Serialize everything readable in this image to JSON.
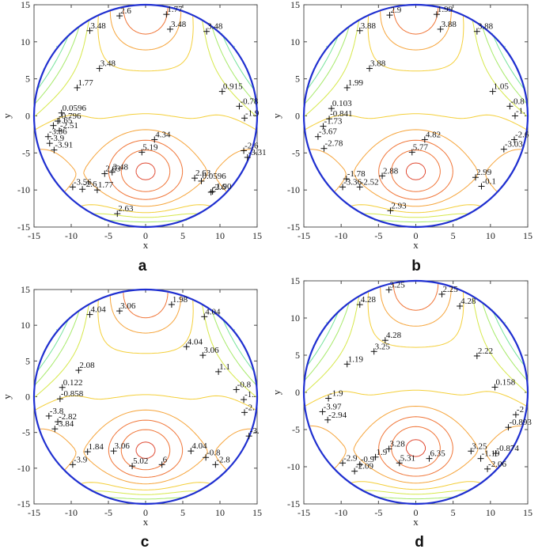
{
  "chart_data": [
    {
      "type": "contour",
      "panel_label": "a",
      "xlabel": "x",
      "ylabel": "y",
      "xlim": [
        -15,
        15
      ],
      "ylim": [
        -15,
        15
      ],
      "xticks": [
        -15,
        -10,
        -5,
        0,
        5,
        10,
        15
      ],
      "yticks": [
        -15,
        -10,
        -5,
        0,
        5,
        10,
        15
      ],
      "boundary": {
        "shape": "circle",
        "center": [
          0,
          0
        ],
        "radius": 15,
        "color": "#1f2fd0"
      },
      "labels": [
        {
          "text": "3.48",
          "x": -7.5,
          "y": 11.5
        },
        {
          "text": "2.6",
          "x": -3.5,
          "y": 13.5
        },
        {
          "text": "3.48",
          "x": 3.3,
          "y": 11.7
        },
        {
          "text": "3.48",
          "x": 8.2,
          "y": 11.4
        },
        {
          "text": "1.77",
          "x": 2.8,
          "y": 13.7
        },
        {
          "text": "3.48",
          "x": -6.2,
          "y": 6.4
        },
        {
          "text": "1.77",
          "x": -9.2,
          "y": 3.8
        },
        {
          "text": "0.915",
          "x": 10.3,
          "y": 3.3
        },
        {
          "text": "0.0596",
          "x": -11.3,
          "y": 0.4
        },
        {
          "text": "-0.78",
          "x": 12.6,
          "y": 1.3
        },
        {
          "text": "-0.796",
          "x": -11.8,
          "y": -0.7
        },
        {
          "text": "-1.9",
          "x": 13.3,
          "y": -0.3
        },
        {
          "text": "-1.65",
          "x": -12.4,
          "y": -1.3
        },
        {
          "text": "-2.51",
          "x": -11.6,
          "y": -2.0
        },
        {
          "text": "-3.36",
          "x": -13.1,
          "y": -2.8
        },
        {
          "text": "-3.9",
          "x": -12.9,
          "y": -3.7
        },
        {
          "text": "-3.91",
          "x": -12.3,
          "y": -4.6
        },
        {
          "text": "4.34",
          "x": 1.2,
          "y": -3.2
        },
        {
          "text": "5.19",
          "x": -0.5,
          "y": -4.9
        },
        {
          "text": "2.63",
          "x": -5.5,
          "y": -7.8
        },
        {
          "text": "3.48",
          "x": -4.5,
          "y": -7.6
        },
        {
          "text": "-3.56",
          "x": -9.8,
          "y": -9.6
        },
        {
          "text": "-2.6",
          "x": -8.5,
          "y": -9.9
        },
        {
          "text": "1.77",
          "x": -6.5,
          "y": -10.0
        },
        {
          "text": "2.63",
          "x": 6.6,
          "y": -8.4
        },
        {
          "text": "0.0596",
          "x": 7.5,
          "y": -8.8
        },
        {
          "text": "-1.90",
          "x": 9.0,
          "y": -10.2
        },
        {
          "text": "-2.6",
          "x": 8.8,
          "y": -10.3
        },
        {
          "text": "2.63",
          "x": -3.8,
          "y": -13.2
        },
        {
          "text": "-2.6",
          "x": 13.2,
          "y": -4.7
        },
        {
          "text": "-3.31",
          "x": 13.7,
          "y": -5.6
        }
      ]
    },
    {
      "type": "contour",
      "panel_label": "b",
      "xlabel": "x",
      "ylabel": "y",
      "xlim": [
        -15,
        15
      ],
      "ylim": [
        -15,
        15
      ],
      "xticks": [
        -15,
        -10,
        -5,
        0,
        5,
        10,
        15
      ],
      "yticks": [
        -15,
        -10,
        -5,
        0,
        5,
        10,
        15
      ],
      "boundary": {
        "shape": "circle",
        "center": [
          0,
          0
        ],
        "radius": 15,
        "color": "#1f2fd0"
      },
      "labels": [
        {
          "text": "3.88",
          "x": -7.5,
          "y": 11.5
        },
        {
          "text": "2.9",
          "x": -3.5,
          "y": 13.6
        },
        {
          "text": "3.88",
          "x": 3.3,
          "y": 11.7
        },
        {
          "text": "3.88",
          "x": 8.2,
          "y": 11.4
        },
        {
          "text": "1.99",
          "x": 2.8,
          "y": 13.7
        },
        {
          "text": "3.88",
          "x": -6.2,
          "y": 6.4
        },
        {
          "text": "1.99",
          "x": -9.2,
          "y": 3.8
        },
        {
          "text": "1.05",
          "x": 10.3,
          "y": 3.3
        },
        {
          "text": "0.103",
          "x": -11.3,
          "y": 1.0
        },
        {
          "text": "-0.8",
          "x": 12.6,
          "y": 1.3
        },
        {
          "text": "-0.841",
          "x": -11.6,
          "y": -0.4
        },
        {
          "text": "-1.",
          "x": 13.3,
          "y": 0.0
        },
        {
          "text": "-1.73",
          "x": -12.4,
          "y": -1.4
        },
        {
          "text": "-3.67",
          "x": -13.1,
          "y": -2.8
        },
        {
          "text": "-2.78",
          "x": -12.3,
          "y": -4.4
        },
        {
          "text": "4.82",
          "x": 1.2,
          "y": -3.2
        },
        {
          "text": "5.77",
          "x": -0.5,
          "y": -4.9
        },
        {
          "text": "-1.78",
          "x": -9.3,
          "y": -8.5
        },
        {
          "text": "2.88",
          "x": -4.5,
          "y": -8.1
        },
        {
          "text": "-3.36",
          "x": -9.8,
          "y": -9.6
        },
        {
          "text": "-2.52",
          "x": -7.5,
          "y": -9.6
        },
        {
          "text": "2.93",
          "x": -3.4,
          "y": -12.8
        },
        {
          "text": "2.99",
          "x": 8.0,
          "y": -8.3
        },
        {
          "text": "-0.1",
          "x": 8.8,
          "y": -9.5
        },
        {
          "text": "-2.6",
          "x": 13.2,
          "y": -3.2
        },
        {
          "text": "-3.03",
          "x": 11.8,
          "y": -4.5
        }
      ]
    },
    {
      "type": "contour",
      "panel_label": "c",
      "xlabel": "x",
      "ylabel": "y",
      "xlim": [
        -15,
        15
      ],
      "ylim": [
        -15,
        15
      ],
      "xticks": [
        -15,
        -10,
        -5,
        0,
        5,
        10,
        15
      ],
      "yticks": [
        -15,
        -10,
        -5,
        0,
        5,
        10,
        15
      ],
      "boundary": {
        "shape": "circle",
        "center": [
          0,
          0
        ],
        "radius": 15,
        "color": "#1f2fd0"
      },
      "labels": [
        {
          "text": "4.04",
          "x": -7.5,
          "y": 11.5
        },
        {
          "text": "3.06",
          "x": -3.5,
          "y": 12.0
        },
        {
          "text": "4.04",
          "x": 7.9,
          "y": 11.2
        },
        {
          "text": "1.98",
          "x": 3.5,
          "y": 12.9
        },
        {
          "text": "4.04",
          "x": 5.5,
          "y": 7.0
        },
        {
          "text": "3.06",
          "x": 7.7,
          "y": 5.8
        },
        {
          "text": "2.08",
          "x": -9.0,
          "y": 3.7
        },
        {
          "text": "1.1",
          "x": 9.8,
          "y": 3.5
        },
        {
          "text": "0.122",
          "x": -11.2,
          "y": 1.3
        },
        {
          "text": "-0.8",
          "x": 12.2,
          "y": 1.0
        },
        {
          "text": "-0.858",
          "x": -11.5,
          "y": -0.3
        },
        {
          "text": "-1.",
          "x": 13.2,
          "y": -0.4
        },
        {
          "text": "-3.8",
          "x": -13.0,
          "y": -2.7
        },
        {
          "text": "-2.82",
          "x": -11.8,
          "y": -3.5
        },
        {
          "text": "-3.84",
          "x": -12.2,
          "y": -4.5
        },
        {
          "text": "3.06",
          "x": -4.3,
          "y": -7.6
        },
        {
          "text": "1.84",
          "x": -7.8,
          "y": -7.7
        },
        {
          "text": "-3.9",
          "x": -9.8,
          "y": -9.5
        },
        {
          "text": "5.02",
          "x": -1.8,
          "y": -9.7
        },
        {
          "text": "6",
          "x": 2.2,
          "y": -9.5
        },
        {
          "text": "4.04",
          "x": 6.1,
          "y": -7.6
        },
        {
          "text": "-0.8",
          "x": 8.1,
          "y": -8.5
        },
        {
          "text": "-2.8",
          "x": 9.4,
          "y": -9.5
        },
        {
          "text": "-2.",
          "x": 13.3,
          "y": -2.2
        },
        {
          "text": "-3.",
          "x": 13.9,
          "y": -5.5
        }
      ]
    },
    {
      "type": "contour",
      "panel_label": "d",
      "xlabel": "x",
      "ylabel": "y",
      "xlim": [
        -15,
        15
      ],
      "ylim": [
        -15,
        15
      ],
      "xticks": [
        -15,
        -10,
        -5,
        0,
        5,
        10,
        15
      ],
      "yticks": [
        -15,
        -10,
        -5,
        0,
        5,
        10,
        15
      ],
      "boundary": {
        "shape": "circle",
        "center": [
          0,
          0
        ],
        "radius": 15,
        "color": "#1f2fd0"
      },
      "labels": [
        {
          "text": "4.28",
          "x": -7.5,
          "y": 11.8
        },
        {
          "text": "3.25",
          "x": -3.6,
          "y": 13.8
        },
        {
          "text": "4.28",
          "x": 5.9,
          "y": 11.6
        },
        {
          "text": "2.25",
          "x": 3.5,
          "y": 13.2
        },
        {
          "text": "4.28",
          "x": -4.1,
          "y": 7.0
        },
        {
          "text": "3.25",
          "x": -5.6,
          "y": 5.5
        },
        {
          "text": "1.19",
          "x": -9.2,
          "y": 3.8
        },
        {
          "text": "2.22",
          "x": 8.2,
          "y": 4.9
        },
        {
          "text": "0.158",
          "x": 10.6,
          "y": 0.7
        },
        {
          "text": "-1.9",
          "x": -11.7,
          "y": -0.8
        },
        {
          "text": "-3.97",
          "x": -12.5,
          "y": -2.6
        },
        {
          "text": "-2.94",
          "x": -11.8,
          "y": -3.7
        },
        {
          "text": "-2",
          "x": 13.4,
          "y": -3.0
        },
        {
          "text": "-0.893",
          "x": 12.4,
          "y": -4.7
        },
        {
          "text": "-2.9",
          "x": -9.8,
          "y": -9.5
        },
        {
          "text": "-0.9",
          "x": -7.5,
          "y": -9.7
        },
        {
          "text": "3.28",
          "x": -3.6,
          "y": -7.6
        },
        {
          "text": "1.9",
          "x": -5.4,
          "y": -8.7
        },
        {
          "text": "-2.09",
          "x": -8.2,
          "y": -10.6
        },
        {
          "text": "5.31",
          "x": -2.2,
          "y": -9.5
        },
        {
          "text": "6.35",
          "x": 1.8,
          "y": -8.9
        },
        {
          "text": "3.25",
          "x": 7.4,
          "y": -7.9
        },
        {
          "text": "-1.19",
          "x": 8.7,
          "y": -8.9
        },
        {
          "text": "-0.874",
          "x": 10.7,
          "y": -8.2
        },
        {
          "text": "-2.06",
          "x": 9.6,
          "y": -10.3
        }
      ]
    }
  ]
}
